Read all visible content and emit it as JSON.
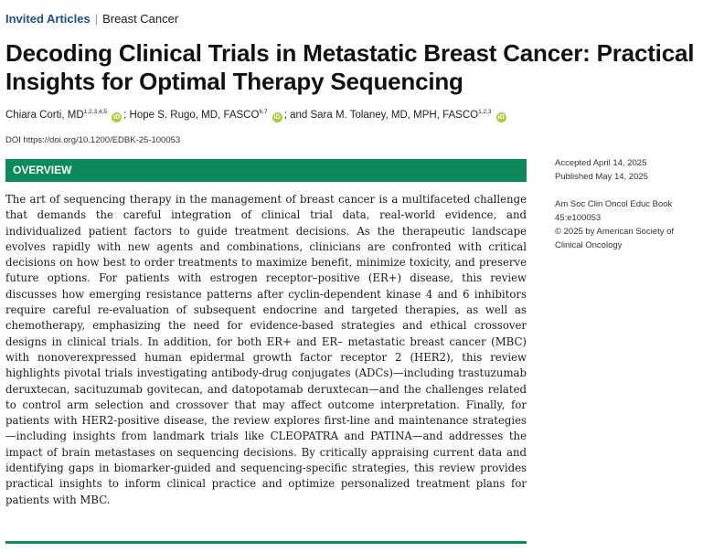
{
  "header": {
    "category": "Invited Articles",
    "separator": "|",
    "subcategory": "Breast Cancer"
  },
  "title": "Decoding Clinical Trials in Metastatic Breast Cancer: Practical Insights for Optimal Therapy Sequencing",
  "authors": [
    {
      "name": "Chiara Corti, MD",
      "affiliations": "1,2,3,4,5",
      "after": "; "
    },
    {
      "name": "Hope S. Rugo, MD, FASCO",
      "affiliations": "6,7",
      "after": "; and "
    },
    {
      "name": "Sara M. Tolaney, MD, MPH, FASCO",
      "affiliations": "1,2,3",
      "after": ""
    }
  ],
  "orcid_icon": "orcid-icon",
  "doi": "DOI https://doi.org/10.1200/EDBK-25-100053",
  "section_title": "OVERVIEW",
  "abstract": "The art of sequencing therapy in the management of breast cancer is a multifaceted challenge that demands the careful integration of clinical trial data, real-world evidence, and individualized patient factors to guide treatment decisions. As the therapeutic landscape evolves rapidly with new agents and combinations, clinicians are confronted with critical decisions on how best to order treatments to maximize benefit, minimize toxicity, and preserve future options. For patients with estrogen receptor–positive (ER+) disease, this review discusses how emerging resistance patterns after cyclin-dependent kinase 4 and 6 inhibitors require careful re-evaluation of subsequent endocrine and targeted therapies, as well as chemotherapy, emphasizing the need for evidence-based strategies and ethical crossover designs in clinical trials. In addition, for both ER+ and ER– metastatic breast cancer (MBC) with nonoverexpressed human epidermal growth factor receptor 2 (HER2), this review highlights pivotal trials investigating antibody-drug conjugates (ADCs)—including trastuzumab deruxtecan, sacituzumab govitecan, and datopotamab deruxtecan—and the challenges related to control arm selection and crossover that may affect outcome interpretation. Finally, for patients with HER2-positive disease, the review explores first-line and maintenance strategies—including insights from landmark trials like CLEOPATRA and PATINA—and addresses the impact of brain metastases on sequencing decisions. By critically appraising current data and identifying gaps in biomarker-guided and sequencing-specific strategies, this review provides practical insights to inform clinical practice and optimize personalized treatment plans for patients with MBC.",
  "sidebar": {
    "accepted": "Accepted April 14, 2025",
    "published": "Published May 14, 2025",
    "journal_line1": "Am Soc Clin Oncol Educ Book",
    "journal_line2": "45:e100053",
    "copyright_line1": "© 2025 by American Society of",
    "copyright_line2": "Clinical Oncology"
  },
  "colors": {
    "accent_green": "#0b8a5a",
    "link_blue": "#1f4e8c",
    "orcid_green": "#a6ce39"
  }
}
